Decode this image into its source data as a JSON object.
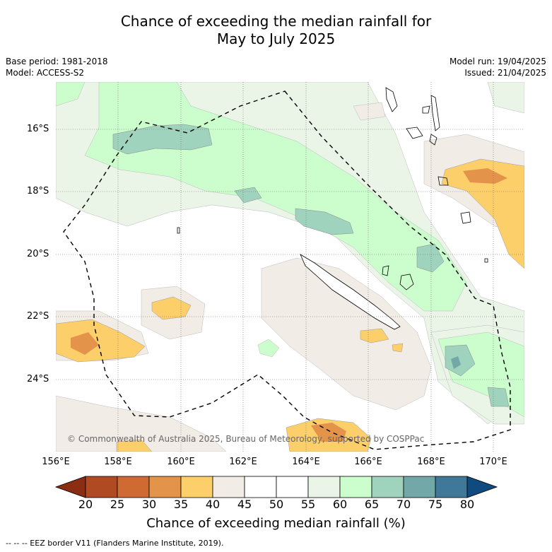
{
  "title": {
    "line1": "Chance of exceeding the median rainfall for",
    "line2": "May to July 2025"
  },
  "meta": {
    "base_period": "Base period: 1981-2018",
    "model": "Model: ACCESS-S2",
    "model_run": "Model run: 19/04/2025",
    "issued": "Issued: 21/04/2025"
  },
  "map": {
    "copyright": "© Commonwealth of Australia 2025, Bureau of Meteorology, supported by COSPPac",
    "lat_ticks": [
      "16°S",
      "18°S",
      "20°S",
      "22°S",
      "24°S"
    ],
    "lon_ticks": [
      "156°E",
      "158°E",
      "160°E",
      "162°E",
      "164°E",
      "166°E",
      "168°E",
      "170°E"
    ]
  },
  "colorbar": {
    "ticks": [
      "20",
      "25",
      "30",
      "35",
      "40",
      "45",
      "50",
      "55",
      "60",
      "65",
      "70",
      "75",
      "80"
    ],
    "label": "Chance of exceeding median rainfall (%)",
    "colors": [
      "#8b2d13",
      "#b04a23",
      "#cf6a33",
      "#e3944a",
      "#fdcf6a",
      "#f2ece7",
      "#ffffff",
      "#ffffff",
      "#eaf5e8",
      "#ccfdcc",
      "#9fd3bd",
      "#72a8a7",
      "#3f7898",
      "#114a7e"
    ]
  },
  "legend": {
    "eez": "--  --  -- EEZ border V11 (Flanders Marine Institute, 2019)."
  }
}
